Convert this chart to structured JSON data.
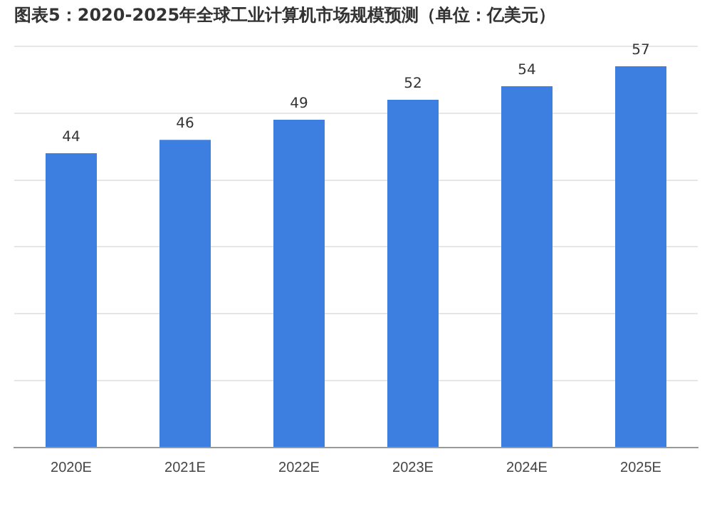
{
  "chart_data": {
    "type": "bar",
    "title": "图表5：2020-2025年全球工业计算机市场规模预测（单位：亿美元）",
    "categories": [
      "2020E",
      "2021E",
      "2022E",
      "2023E",
      "2024E",
      "2025E"
    ],
    "values": [
      44,
      46,
      49,
      52,
      54,
      57
    ],
    "color": "#3d7fe0",
    "ylim": [
      0,
      60
    ],
    "yticks": [
      {
        "value": 0,
        "label": null
      },
      {
        "value": 10,
        "label": null
      },
      {
        "value": 20,
        "label": null
      },
      {
        "value": 30,
        "label": null
      },
      {
        "value": 40,
        "label": null
      },
      {
        "value": 50,
        "label": null
      },
      {
        "value": 60,
        "label": null
      }
    ],
    "grid": "y",
    "tick_labels": "x",
    "data_labels": true
  }
}
